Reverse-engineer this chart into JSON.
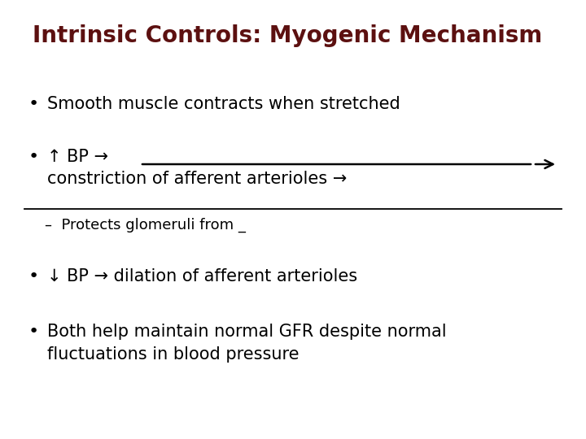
{
  "title": "Intrinsic Controls: Myogenic Mechanism",
  "title_color": "#5C1010",
  "title_fontsize": 20,
  "bg_color": "#FFFFFF",
  "text_color": "#000000",
  "bullet1": "Smooth muscle contracts when stretched",
  "bullet2_line2": "constriction of afferent arterioles →",
  "sub_bullet": "–  Protects glomeruli from _",
  "bullet3_text": "↓ BP → dilation of afferent arterioles",
  "bullet4": "Both help maintain normal GFR despite normal\nfluctuations in blood pressure",
  "body_fontsize": 15,
  "sub_fontsize": 13,
  "line_color": "#000000",
  "figsize": [
    7.2,
    5.4
  ],
  "dpi": 100
}
